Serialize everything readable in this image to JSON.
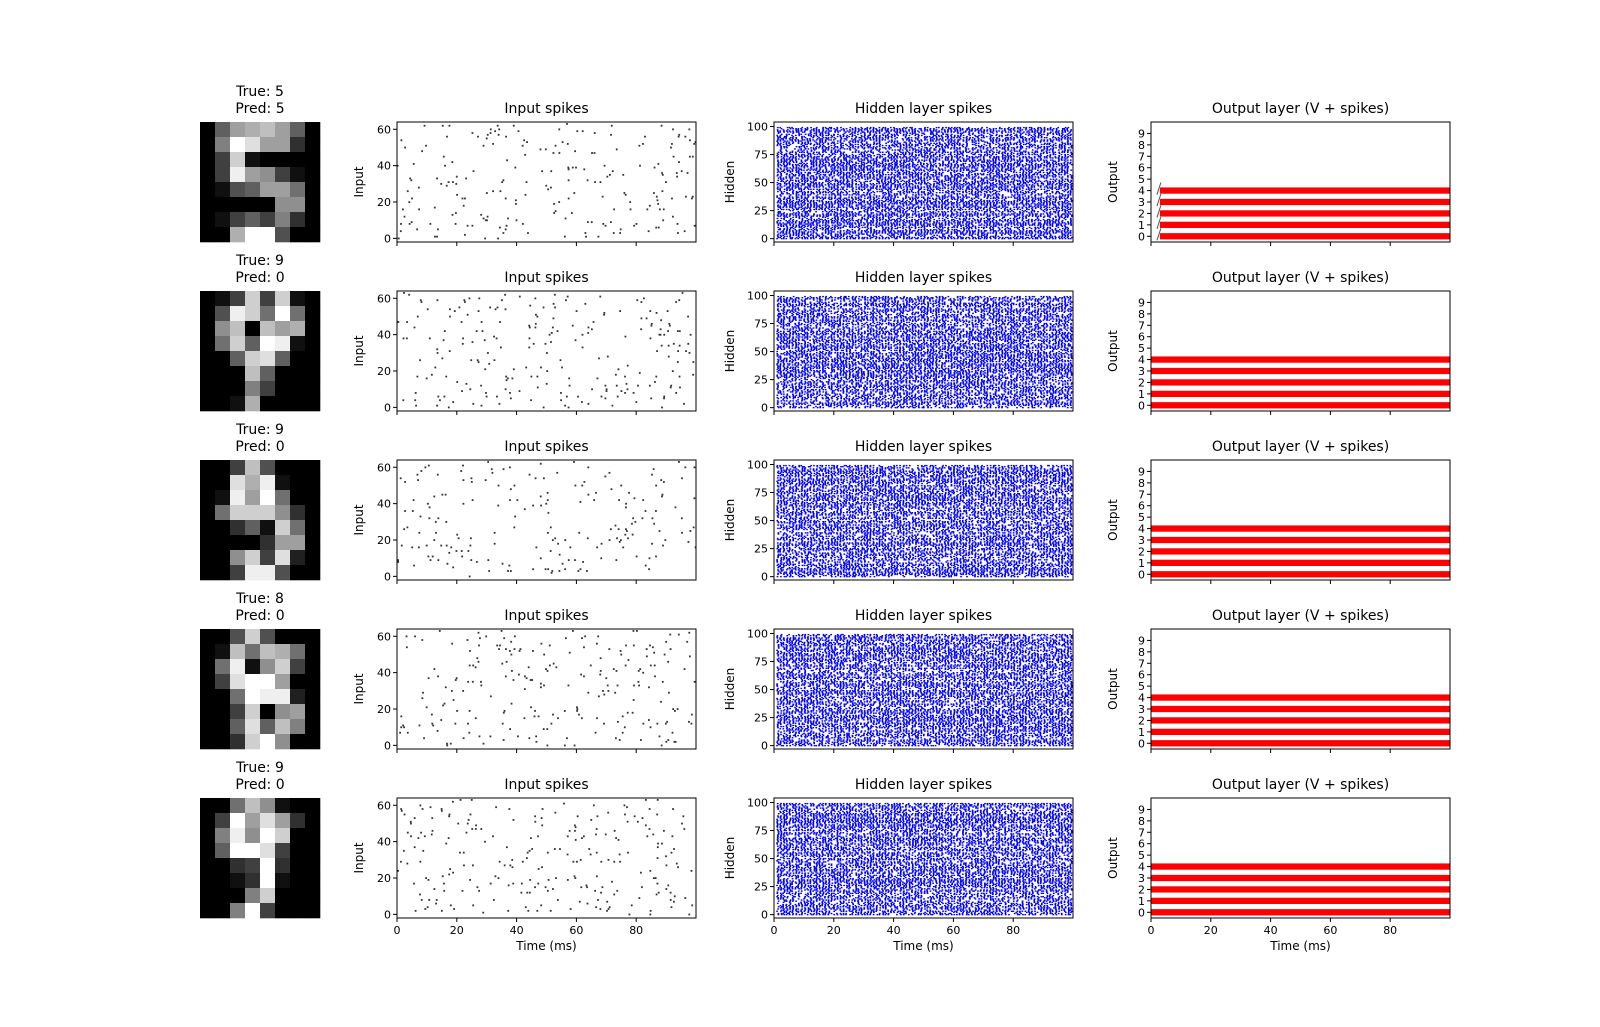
{
  "chart_data": {
    "type": "figure-grid",
    "xlabel": "Time (ms)",
    "time_range": [
      0,
      100
    ],
    "x_ticks": [
      0,
      20,
      40,
      60,
      80
    ],
    "columns": [
      {
        "key": "digit",
        "type": "heatmap",
        "colormap": "gray"
      },
      {
        "key": "input",
        "type": "scatter",
        "title": "Input spikes",
        "ylabel": "Input",
        "ylim": [
          -2,
          64
        ],
        "y_ticks": [
          0,
          20,
          40,
          60
        ],
        "n_neurons": 64,
        "spike_color": "#333333"
      },
      {
        "key": "hidden",
        "type": "scatter",
        "title": "Hidden layer spikes",
        "ylabel": "Hidden",
        "ylim": [
          -3,
          104
        ],
        "y_ticks": [
          0,
          25,
          50,
          75,
          100
        ],
        "n_neurons": 100,
        "spike_color": "#0000ff"
      },
      {
        "key": "output",
        "type": "line",
        "title": "Output layer (V + spikes)",
        "ylabel": "Output",
        "ylim": [
          -0.5,
          10
        ],
        "y_ticks": [
          0,
          1,
          2,
          3,
          4,
          5,
          6,
          7,
          8,
          9
        ],
        "active_units": [
          0,
          1,
          2,
          3,
          4
        ],
        "spike_color": "#ff0000"
      }
    ],
    "samples": [
      {
        "true_label": "True: 5",
        "pred_label": "Pred: 5",
        "pixels": [
          [
            0,
            6,
            10,
            11,
            12,
            10,
            6,
            0
          ],
          [
            0,
            8,
            16,
            14,
            10,
            10,
            3,
            0
          ],
          [
            0,
            4,
            13,
            1,
            0,
            0,
            0,
            0
          ],
          [
            0,
            4,
            15,
            10,
            9,
            4,
            1,
            0
          ],
          [
            0,
            1,
            5,
            6,
            10,
            10,
            7,
            0
          ],
          [
            0,
            0,
            0,
            0,
            0,
            9,
            9,
            0
          ],
          [
            0,
            1,
            4,
            6,
            4,
            8,
            3,
            0
          ],
          [
            0,
            0,
            11,
            16,
            16,
            5,
            0,
            0
          ]
        ]
      },
      {
        "true_label": "True: 9",
        "pred_label": "Pred: 0",
        "pixels": [
          [
            0,
            1,
            4,
            13,
            4,
            13,
            1,
            0
          ],
          [
            0,
            5,
            15,
            13,
            7,
            16,
            7,
            0
          ],
          [
            0,
            9,
            12,
            0,
            12,
            10,
            11,
            0
          ],
          [
            0,
            7,
            13,
            6,
            16,
            15,
            1,
            0
          ],
          [
            0,
            0,
            6,
            13,
            14,
            6,
            0,
            0
          ],
          [
            0,
            0,
            0,
            12,
            6,
            0,
            0,
            0
          ],
          [
            0,
            0,
            0,
            8,
            4,
            0,
            0,
            0
          ],
          [
            0,
            0,
            1,
            11,
            0,
            0,
            0,
            0
          ]
        ]
      },
      {
        "true_label": "True: 9",
        "pred_label": "Pred: 0",
        "pixels": [
          [
            0,
            0,
            4,
            12,
            5,
            0,
            0,
            0
          ],
          [
            0,
            0,
            14,
            11,
            15,
            1,
            0,
            0
          ],
          [
            0,
            1,
            15,
            10,
            16,
            7,
            0,
            0
          ],
          [
            0,
            7,
            13,
            13,
            13,
            9,
            3,
            0
          ],
          [
            0,
            0,
            3,
            6,
            1,
            13,
            7,
            0
          ],
          [
            0,
            0,
            0,
            0,
            3,
            10,
            10,
            0
          ],
          [
            0,
            0,
            9,
            13,
            4,
            14,
            2,
            0
          ],
          [
            0,
            0,
            4,
            15,
            15,
            5,
            0,
            0
          ]
        ]
      },
      {
        "true_label": "True: 8",
        "pred_label": "Pred: 0",
        "pixels": [
          [
            0,
            0,
            5,
            13,
            5,
            0,
            0,
            0
          ],
          [
            0,
            1,
            12,
            7,
            12,
            11,
            7,
            0
          ],
          [
            0,
            7,
            15,
            1,
            9,
            13,
            4,
            0
          ],
          [
            0,
            4,
            14,
            16,
            16,
            10,
            0,
            0
          ],
          [
            0,
            0,
            7,
            16,
            15,
            15,
            2,
            0
          ],
          [
            0,
            0,
            4,
            13,
            0,
            9,
            10,
            0
          ],
          [
            0,
            0,
            6,
            14,
            6,
            12,
            8,
            0
          ],
          [
            0,
            0,
            3,
            13,
            16,
            9,
            0,
            0
          ]
        ]
      },
      {
        "true_label": "True: 9",
        "pred_label": "Pred: 0",
        "pixels": [
          [
            0,
            0,
            7,
            12,
            9,
            1,
            0,
            0
          ],
          [
            0,
            4,
            16,
            10,
            14,
            10,
            3,
            0
          ],
          [
            0,
            8,
            15,
            9,
            16,
            13,
            0,
            0
          ],
          [
            0,
            6,
            16,
            16,
            14,
            4,
            0,
            0
          ],
          [
            0,
            0,
            3,
            4,
            16,
            3,
            0,
            0
          ],
          [
            0,
            0,
            1,
            3,
            16,
            1,
            0,
            0
          ],
          [
            0,
            0,
            0,
            8,
            13,
            0,
            0,
            0
          ],
          [
            0,
            0,
            8,
            16,
            4,
            0,
            0,
            0
          ]
        ]
      }
    ]
  }
}
